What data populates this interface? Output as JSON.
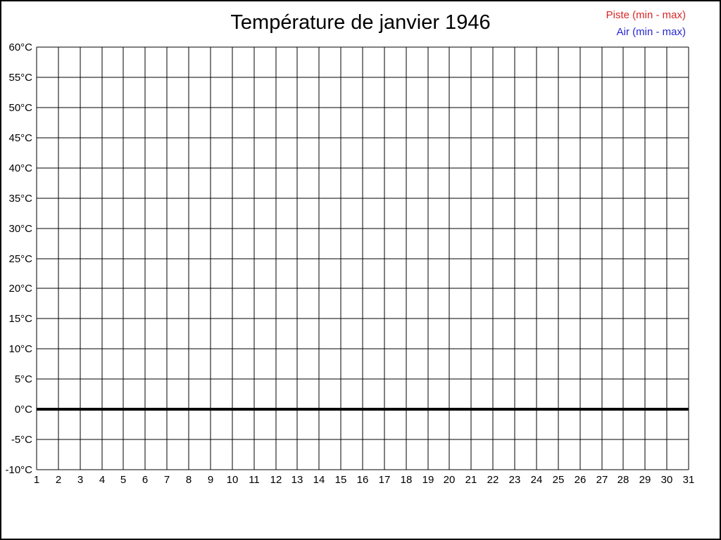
{
  "frame": {
    "background": "#ffffff",
    "border_color": "#000000"
  },
  "chart_data": {
    "type": "line",
    "title": "Température de janvier 1946",
    "xlabel": "",
    "ylabel": "",
    "x": [
      1,
      2,
      3,
      4,
      5,
      6,
      7,
      8,
      9,
      10,
      11,
      12,
      13,
      14,
      15,
      16,
      17,
      18,
      19,
      20,
      21,
      22,
      23,
      24,
      25,
      26,
      27,
      28,
      29,
      30,
      31
    ],
    "x_ticks": [
      "1",
      "2",
      "3",
      "4",
      "5",
      "6",
      "7",
      "8",
      "9",
      "10",
      "11",
      "12",
      "13",
      "14",
      "15",
      "16",
      "17",
      "18",
      "19",
      "20",
      "21",
      "22",
      "23",
      "24",
      "25",
      "26",
      "27",
      "28",
      "29",
      "30",
      "31"
    ],
    "y_ticks": [
      "60°C",
      "55°C",
      "50°C",
      "45°C",
      "40°C",
      "35°C",
      "30°C",
      "25°C",
      "20°C",
      "15°C",
      "10°C",
      "5°C",
      "0°C",
      "-5°C",
      "-10°C"
    ],
    "xlim": [
      1,
      31
    ],
    "ylim": [
      -10,
      60
    ],
    "y_step": 5,
    "grid": true,
    "grid_color": "#000000",
    "zero_reference_line": {
      "value": 0,
      "color": "#000000",
      "thickness": 4
    },
    "legend_position": "top-right",
    "legend": [
      {
        "name": "Piste (min - max)",
        "color": "#d92727"
      },
      {
        "name": "Air (min - max)",
        "color": "#2727cc"
      }
    ],
    "series": [
      {
        "name": "Piste (min - max)",
        "color": "#d92727",
        "values": []
      },
      {
        "name": "Air (min - max)",
        "color": "#2727cc",
        "values": []
      }
    ]
  }
}
